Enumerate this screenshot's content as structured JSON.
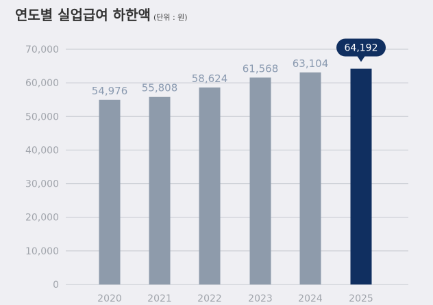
{
  "header": {
    "title": "연도별 실업급여 하한액",
    "unit": "(단위 : 원)"
  },
  "colors": {
    "bar": "#8e9bab",
    "highlight": "#102f60",
    "label": "#8a9ab0",
    "grid": "#c5c8cf",
    "tick": "#a0a4ab",
    "background": "#efeff3"
  },
  "chart_data": {
    "type": "bar",
    "title": "연도별 실업급여 하한액",
    "unit": "(단위 : 원)",
    "categories": [
      "2020",
      "2021",
      "2022",
      "2023",
      "2024",
      "2025"
    ],
    "values": [
      54976,
      55808,
      58624,
      61568,
      63104,
      64192
    ],
    "value_labels": [
      "54,976",
      "55,808",
      "58,624",
      "61,568",
      "63,104",
      "64,192"
    ],
    "highlight_index": 5,
    "ylim": [
      0,
      70000
    ],
    "yticks": [
      0,
      10000,
      20000,
      30000,
      40000,
      50000,
      60000,
      70000
    ],
    "ytick_labels": [
      "0",
      "10,000",
      "20,000",
      "30,000",
      "40,000",
      "50,000",
      "60,000",
      "70,000"
    ],
    "grid": true,
    "xlabel": "",
    "ylabel": ""
  }
}
